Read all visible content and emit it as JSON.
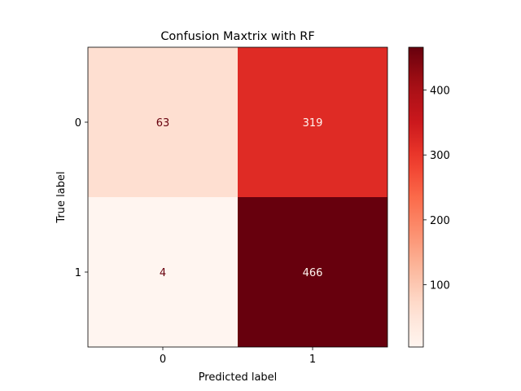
{
  "chart_data": {
    "type": "heatmap",
    "title": "Confusion Maxtrix with RF",
    "xlabel": "Predicted label",
    "ylabel": "True label",
    "x_categories": [
      "0",
      "1"
    ],
    "y_categories": [
      "0",
      "1"
    ],
    "values": [
      [
        63,
        319
      ],
      [
        4,
        466
      ]
    ],
    "colormap": "Reds",
    "colorbar": {
      "min": 4,
      "max": 466,
      "ticks": [
        100,
        200,
        300,
        400
      ],
      "tick_labels": [
        "100",
        "200",
        "300",
        "400"
      ]
    },
    "colors": {
      "text_on_light": "#67000d",
      "text_on_dark": "#fff5f0"
    }
  }
}
